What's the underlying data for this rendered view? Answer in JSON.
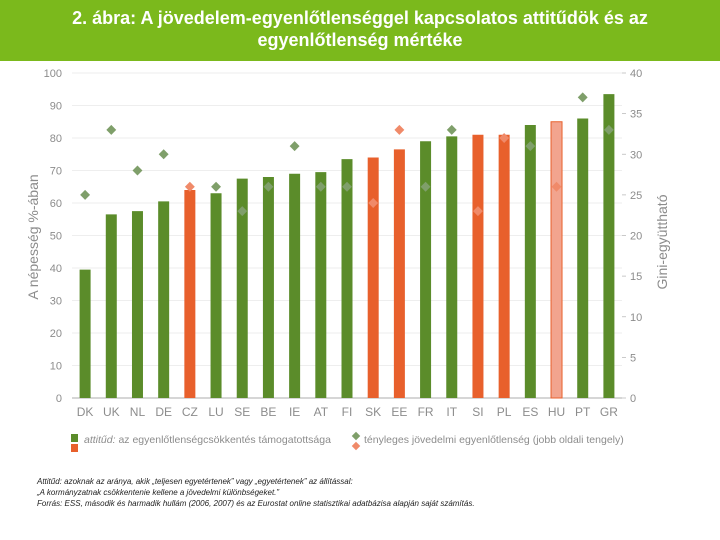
{
  "header": {
    "title": "2. ábra: A jövedelem-egyenlőtlenséggel kapcsolatos attitűdök és az egyenlőtlenség mértéke"
  },
  "colors": {
    "header_bg": "#7bb91c",
    "green_bar": "#5b8c2a",
    "orange_bar": "#e8602c",
    "hu_bar": "#f2a48e",
    "green_marker": "#7f9f6a",
    "orange_marker": "#f08a69",
    "axis_text": "#8c8c8c",
    "grid": "#dddddd"
  },
  "chart_data": {
    "type": "bar",
    "title": "",
    "categories": [
      "DK",
      "UK",
      "NL",
      "DE",
      "CZ",
      "LU",
      "SE",
      "BE",
      "IE",
      "AT",
      "FI",
      "SK",
      "EE",
      "FR",
      "IT",
      "SI",
      "PL",
      "ES",
      "HU",
      "PT",
      "GR"
    ],
    "bar_series": {
      "name": "attitűd: az egyenlőtlenségcsökkentés támogatottsága",
      "values": [
        39.5,
        56.5,
        57.5,
        60.5,
        64,
        63,
        67.5,
        68,
        69,
        69.5,
        73.5,
        74,
        76.5,
        79,
        80.5,
        81,
        81,
        84,
        85,
        86,
        93.5
      ],
      "color_groups": [
        "green",
        "green",
        "green",
        "green",
        "orange",
        "green",
        "green",
        "green",
        "green",
        "green",
        "green",
        "orange",
        "orange",
        "green",
        "green",
        "orange",
        "orange",
        "green",
        "orange-light",
        "green",
        "green"
      ]
    },
    "marker_series": {
      "name": "tényleges jövedelmi egyenlőtlenség (jobb oldali tengely)",
      "values": [
        25,
        33,
        28,
        30,
        26,
        26,
        23,
        26,
        31,
        26,
        26,
        24,
        33,
        26,
        33,
        23,
        32,
        31,
        26,
        37,
        33
      ],
      "color_groups": [
        "green",
        "green",
        "green",
        "green",
        "orange",
        "green",
        "green",
        "green",
        "green",
        "green",
        "green",
        "orange",
        "orange",
        "green",
        "green",
        "orange",
        "orange",
        "green",
        "orange",
        "green",
        "green"
      ]
    },
    "y_left": {
      "label": "A népesség %-ában",
      "range": [
        0,
        100
      ],
      "ticks": [
        "0",
        "10",
        "20",
        "30",
        "40",
        "50",
        "60",
        "70",
        "80",
        "90",
        "100"
      ]
    },
    "y_right": {
      "label": "Gini-együttható",
      "range": [
        0,
        40
      ],
      "ticks": [
        "0",
        "5",
        "10",
        "15",
        "20",
        "25",
        "30",
        "35",
        "40"
      ]
    },
    "legend": {
      "bar_label_prefix": "attitűd:",
      "bar_label_rest": "az egyenlőtlenségcsökkentés támogatottsága",
      "marker_label": "tényleges jövedelmi egyenlőtlenség (jobb oldali tengely)"
    }
  },
  "notes": {
    "line1": "Attitűd: azoknak az aránya, akik „teljesen egyetértenek” vagy „egyetértenek” az állítással:",
    "line2": "„A kormányzatnak csökkentenie kellene a jövedelmi különbségeket.”",
    "line3": "Forrás: ESS, második és harmadik hullám (2006, 2007) és az Eurostat online statisztikai adatbázisa alapján saját számítás."
  }
}
